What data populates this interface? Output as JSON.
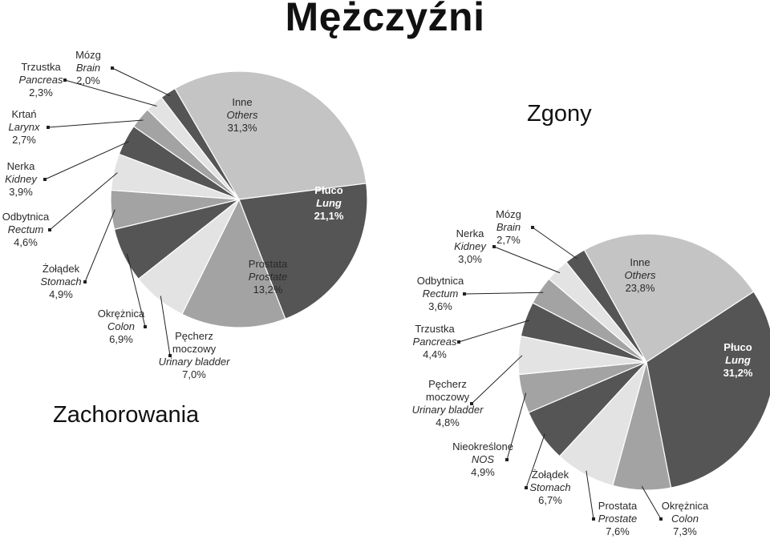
{
  "page": {
    "title": "Mężczyźni"
  },
  "chart_data": [
    {
      "type": "pie",
      "title": "Zachorowania",
      "slices": [
        {
          "pl": "Inne",
          "en": "Others",
          "value": 31.3,
          "label": "31,3%",
          "color": "#c4c4c4"
        },
        {
          "pl": "Płuco",
          "en": "Lung",
          "value": 21.1,
          "label": "21,1%",
          "color": "#555555"
        },
        {
          "pl": "Prostata",
          "en": "Prostate",
          "value": 13.2,
          "label": "13,2%",
          "color": "#a3a3a3"
        },
        {
          "pl": "Pęcherz moczowy",
          "en": "Urinary bladder",
          "value": 7.0,
          "label": "7,0%",
          "color": "#e3e3e3"
        },
        {
          "pl": "Okrężnica",
          "en": "Colon",
          "value": 6.9,
          "label": "6,9%",
          "color": "#555555"
        },
        {
          "pl": "Żołądek",
          "en": "Stomach",
          "value": 4.9,
          "label": "4,9%",
          "color": "#a3a3a3"
        },
        {
          "pl": "Odbytnica",
          "en": "Rectum",
          "value": 4.6,
          "label": "4,6%",
          "color": "#e3e3e3"
        },
        {
          "pl": "Nerka",
          "en": "Kidney",
          "value": 3.9,
          "label": "3,9%",
          "color": "#555555"
        },
        {
          "pl": "Krtań",
          "en": "Larynx",
          "value": 2.7,
          "label": "2,7%",
          "color": "#a3a3a3"
        },
        {
          "pl": "Trzustka",
          "en": "Pancreas",
          "value": 2.3,
          "label": "2,3%",
          "color": "#e3e3e3"
        },
        {
          "pl": "Mózg",
          "en": "Brain",
          "value": 2.0,
          "label": "2,0%",
          "color": "#555555"
        }
      ]
    },
    {
      "type": "pie",
      "title": "Zgony",
      "slices": [
        {
          "pl": "Inne",
          "en": "Others",
          "value": 23.8,
          "label": "23,8%",
          "color": "#c4c4c4"
        },
        {
          "pl": "Płuco",
          "en": "Lung",
          "value": 31.2,
          "label": "31,2%",
          "color": "#555555"
        },
        {
          "pl": "Okrężnica",
          "en": "Colon",
          "value": 7.3,
          "label": "7,3%",
          "color": "#a3a3a3"
        },
        {
          "pl": "Prostata",
          "en": "Prostate",
          "value": 7.6,
          "label": "7,6%",
          "color": "#e3e3e3"
        },
        {
          "pl": "Żołądek",
          "en": "Stomach",
          "value": 6.7,
          "label": "6,7%",
          "color": "#555555"
        },
        {
          "pl": "Nieokreślone",
          "en": "NOS",
          "value": 4.9,
          "label": "4,9%",
          "color": "#a3a3a3"
        },
        {
          "pl": "Pęcherz moczowy",
          "en": "Urinary bladder",
          "value": 4.8,
          "label": "4,8%",
          "color": "#e3e3e3"
        },
        {
          "pl": "Trzustka",
          "en": "Pancreas",
          "value": 4.4,
          "label": "4,4%",
          "color": "#555555"
        },
        {
          "pl": "Odbytnica",
          "en": "Rectum",
          "value": 3.6,
          "label": "3,6%",
          "color": "#a3a3a3"
        },
        {
          "pl": "Nerka",
          "en": "Kidney",
          "value": 3.0,
          "label": "3,0%",
          "color": "#e3e3e3"
        },
        {
          "pl": "Mózg",
          "en": "Brain",
          "value": 2.7,
          "label": "2,7%",
          "color": "#555555"
        }
      ]
    }
  ]
}
